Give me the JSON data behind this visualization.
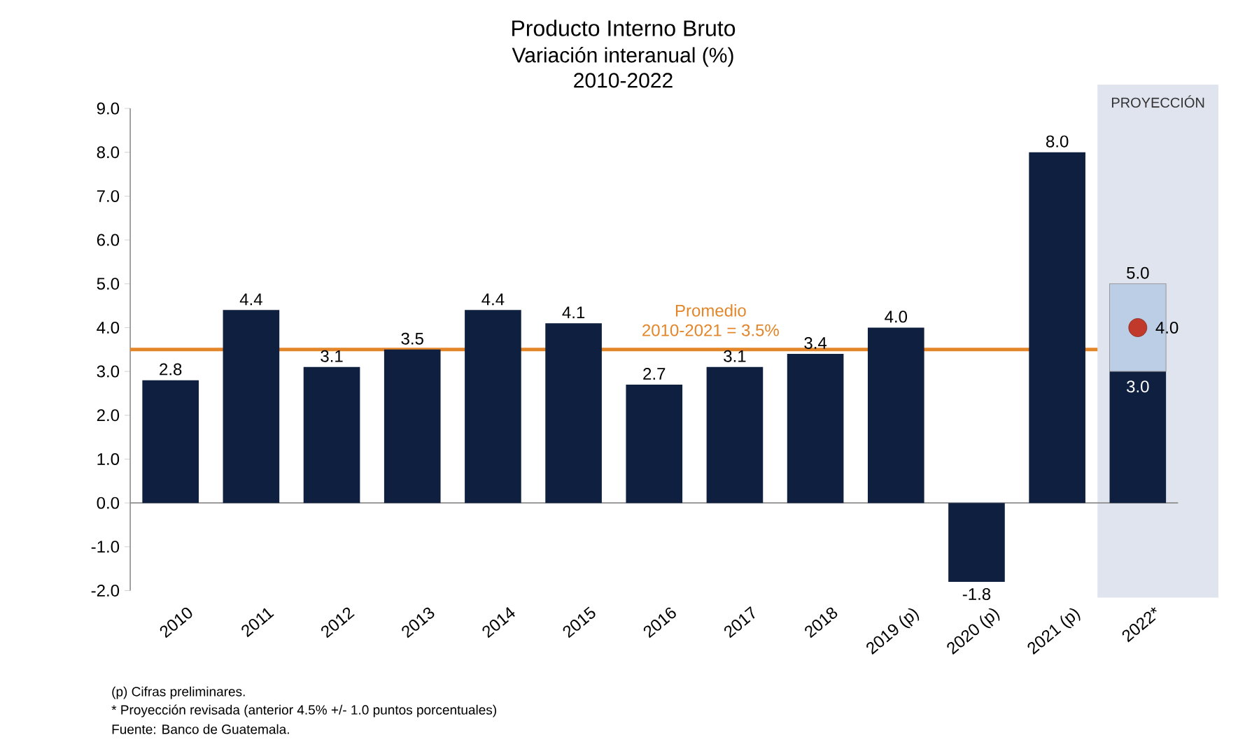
{
  "chart_data": {
    "type": "bar",
    "title": "Producto Interno Bruto",
    "subtitle": "Variación interanual (%) 2010-2022",
    "categories": [
      "2010",
      "2011",
      "2012",
      "2013",
      "2014",
      "2015",
      "2016",
      "2017",
      "2018",
      "2019 (p)",
      "2020 (p)",
      "2021 (p)",
      "2022*"
    ],
    "stacked": true,
    "series": [
      {
        "color": "#0f1f3f",
        "values": [
          2.8,
          4.4,
          3.1,
          3.5,
          4.4,
          4.1,
          2.7,
          3.1,
          3.4,
          4.0,
          -1.8,
          8.0,
          3.0
        ],
        "value_labels": [
          "2.8",
          "4.4",
          "3.1",
          "3.5",
          "4.4",
          "4.1",
          "2.7",
          "3.1",
          "3.4",
          "4.0",
          "-1.8",
          "8.0",
          "3.0"
        ]
      },
      {
        "color": "#bccde6",
        "values": [
          null,
          null,
          null,
          null,
          null,
          null,
          null,
          null,
          null,
          null,
          null,
          null,
          2.0
        ]
      },
      {
        "type": "scatter",
        "color": "#c0392b",
        "marker": "circle",
        "x": [
          "2022*"
        ],
        "values": [
          4.0
        ],
        "value_labels": [
          "4.0"
        ]
      }
    ],
    "ylim": [
      -2,
      9
    ],
    "yticks": [
      {
        "value": -2,
        "label": "-2.0"
      },
      {
        "value": -1,
        "label": "-1.0"
      },
      {
        "value": 0,
        "label": "0.0"
      },
      {
        "value": 1,
        "label": "1.0"
      },
      {
        "value": 2,
        "label": "2.0"
      },
      {
        "value": 3,
        "label": "3.0"
      },
      {
        "value": 4,
        "label": "4.0"
      },
      {
        "value": 5,
        "label": "5.0"
      },
      {
        "value": 6,
        "label": "6.0"
      },
      {
        "value": 7,
        "label": "7.0"
      },
      {
        "value": 8,
        "label": "8.0"
      },
      {
        "value": 9,
        "label": "9.0"
      }
    ],
    "ref_lines": [
      {
        "axis": "y",
        "value": 3.5,
        "label": "Promedio 2010-2021 = 3.5%",
        "color": "#e3862a"
      }
    ],
    "bands": [
      {
        "axis": "x",
        "from": "2022*",
        "to": "2022*",
        "label": "PROYECCIÓN",
        "color": "#dfe4ef"
      }
    ],
    "annotations": [
      {
        "text": "5.0",
        "x": "2022*",
        "y": 5.0
      },
      "(p) Cifras preliminares.",
      "* Proyección revisada (anterior 4.5% +/- 1.0 puntos porcentuales)",
      "Fuente: Banco de Guatemala."
    ]
  }
}
